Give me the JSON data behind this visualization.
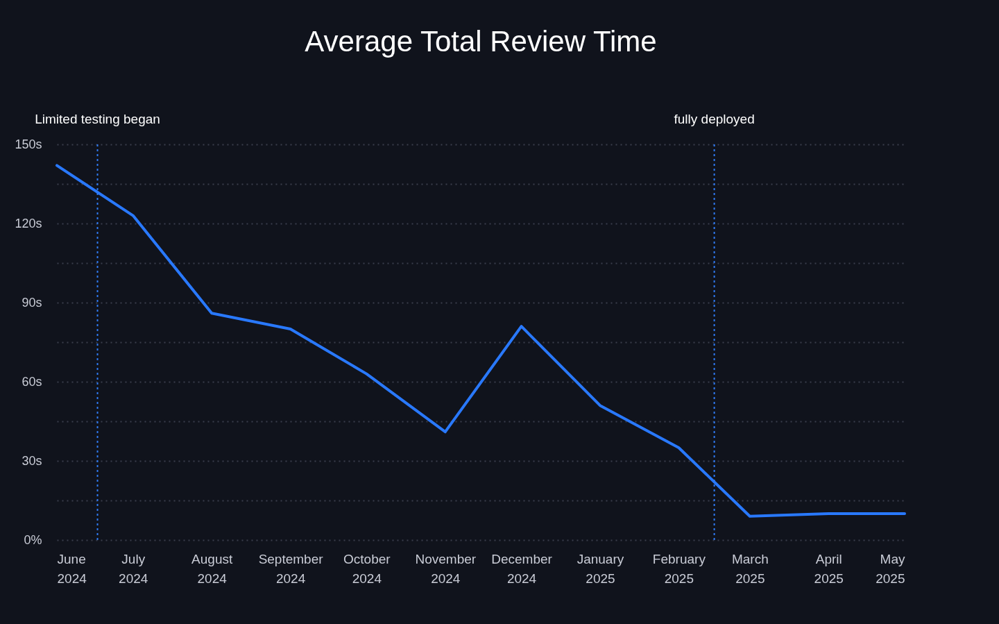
{
  "chart_data": {
    "type": "line",
    "title": "Average Total Review Time",
    "x": [
      "2024-06",
      "2024-07",
      "2024-08",
      "2024-09",
      "2024-10",
      "2024-11",
      "2024-12",
      "2025-01",
      "2025-02",
      "2025-03",
      "2025-04",
      "2025-05"
    ],
    "xlim": [
      "2024-06",
      "2025-05"
    ],
    "xticks": [
      {
        "value": "2024-06",
        "label": "June\n2024"
      },
      {
        "value": "2024-07",
        "label": "July\n2024"
      },
      {
        "value": "2024-08",
        "label": "August\n2024"
      },
      {
        "value": "2024-09",
        "label": "September\n2024"
      },
      {
        "value": "2024-10",
        "label": "October\n2024"
      },
      {
        "value": "2024-11",
        "label": "November\n2024"
      },
      {
        "value": "2024-12",
        "label": "December\n2024"
      },
      {
        "value": "2025-01",
        "label": "January\n2025"
      },
      {
        "value": "2025-02",
        "label": "February\n2025"
      },
      {
        "value": "2025-03",
        "label": "March\n2025"
      },
      {
        "value": "2025-04",
        "label": "April\n2025"
      },
      {
        "value": "2025-05",
        "label": "May\n2025"
      }
    ],
    "series": [
      {
        "color": "#2979ff",
        "values": [
          142,
          123,
          86,
          80,
          63,
          41,
          81,
          51,
          35,
          9,
          10,
          10
        ]
      }
    ],
    "ylim": [
      0,
      150
    ],
    "yticks": [
      {
        "value": 0,
        "label": "0%"
      },
      {
        "value": 15,
        "label": null
      },
      {
        "value": 30,
        "label": "30s"
      },
      {
        "value": 45,
        "label": null
      },
      {
        "value": 60,
        "label": "60s"
      },
      {
        "value": 75,
        "label": null
      },
      {
        "value": 90,
        "label": "90s"
      },
      {
        "value": 105,
        "label": null
      },
      {
        "value": 120,
        "label": "120s"
      },
      {
        "value": 135,
        "label": null
      },
      {
        "value": 150,
        "label": "150s"
      }
    ],
    "grid": "y",
    "marker": "none",
    "line_style": "solid",
    "ref_lines": [
      {
        "axis": "x",
        "value": "2024-06-17",
        "label": "Limited testing began",
        "color": "#2f7bf5",
        "line_style": "dashed"
      },
      {
        "axis": "x",
        "value": "2025-02-15",
        "label": "fully deployed",
        "color": "#2f7bf5",
        "line_style": "dashed"
      }
    ]
  }
}
